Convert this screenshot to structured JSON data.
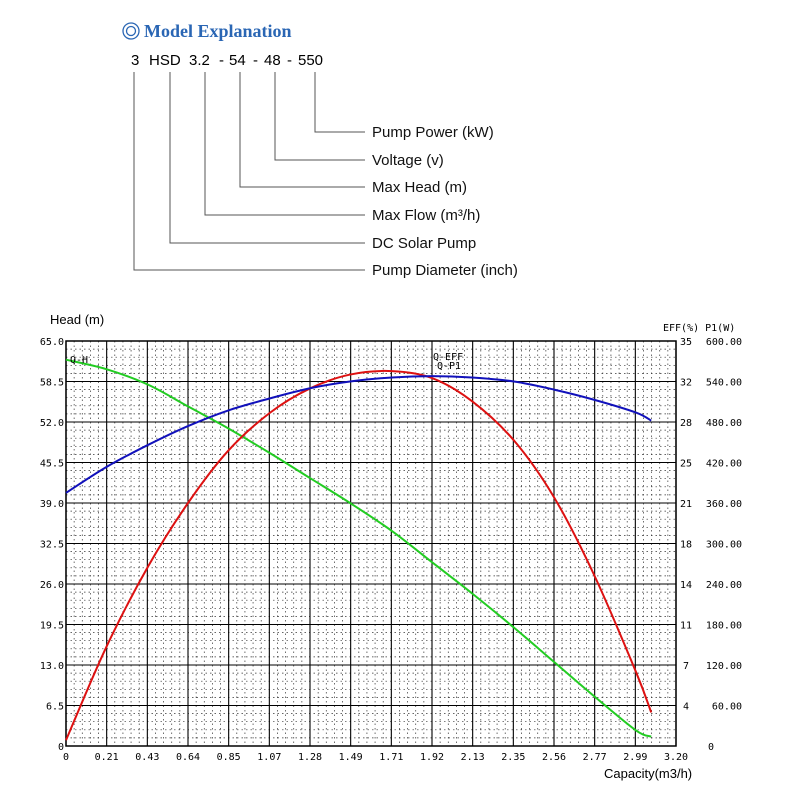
{
  "model": {
    "heading": "Model Explanation",
    "code_parts": [
      "3",
      "HSD",
      "3.2",
      "-",
      "54",
      "-",
      "48",
      "-",
      "550"
    ],
    "labels": [
      "Pump Power (kW)",
      "Voltage (v)",
      "Max Head (m)",
      "Max Flow (m³/h)",
      "DC Solar Pump",
      "Pump Diameter (inch)"
    ]
  },
  "chart_data": {
    "type": "line",
    "ylabel_left": "Head (m)",
    "ylabel_right": "EFF(%) P1(W)",
    "xlabel": "Capacity(m3/h)",
    "x_ticks": [
      "0",
      "0.21",
      "0.43",
      "0.64",
      "0.85",
      "1.07",
      "1.28",
      "1.49",
      "1.71",
      "1.92",
      "2.13",
      "2.35",
      "2.56",
      "2.77",
      "2.99",
      "3.20"
    ],
    "y_left_ticks": [
      "0",
      "6.5",
      "13.0",
      "19.5",
      "26.0",
      "32.5",
      "39.0",
      "45.5",
      "52.0",
      "58.5",
      "65.0"
    ],
    "y_right_eff_ticks": [
      "",
      "4",
      "7",
      "11",
      "14",
      "18",
      "21",
      "25",
      "28",
      "32",
      "35"
    ],
    "y_right_p_ticks": [
      "0",
      "60.00",
      "120.00",
      "180.00",
      "240.00",
      "300.00",
      "360.00",
      "420.00",
      "480.00",
      "540.00",
      "600.00"
    ],
    "xlim": [
      0,
      3.2
    ],
    "ylim_head": [
      0,
      65
    ],
    "ylim_eff": [
      0,
      35
    ],
    "ylim_power": [
      0,
      600
    ],
    "grid": true,
    "series": [
      {
        "name": "Q-H",
        "axis": "head",
        "color": "#22cc22",
        "x": [
          0,
          0.21,
          0.43,
          0.64,
          0.85,
          1.07,
          1.28,
          1.49,
          1.71,
          1.92,
          2.13,
          2.35,
          2.56,
          2.77,
          2.99,
          3.07
        ],
        "y": [
          62.0,
          60.5,
          58.0,
          54.5,
          51.0,
          47.0,
          43.0,
          39.0,
          34.5,
          29.5,
          24.5,
          19.0,
          13.5,
          8.0,
          2.5,
          1.5
        ]
      },
      {
        "name": "Q-EFF",
        "axis": "eff",
        "color": "#dd1111",
        "x": [
          0,
          0.21,
          0.43,
          0.64,
          0.85,
          1.07,
          1.28,
          1.49,
          1.71,
          1.92,
          2.13,
          2.35,
          2.56,
          2.77,
          2.99,
          3.07
        ],
        "y": [
          0.5,
          8.5,
          15.5,
          21.0,
          25.5,
          28.8,
          30.9,
          32.1,
          32.4,
          31.8,
          29.8,
          26.4,
          21.5,
          14.8,
          6.4,
          2.9
        ]
      },
      {
        "name": "Q-P1",
        "axis": "power",
        "color": "#1111bb",
        "x": [
          0,
          0.21,
          0.43,
          0.64,
          0.85,
          1.07,
          1.28,
          1.49,
          1.71,
          1.92,
          2.13,
          2.35,
          2.56,
          2.77,
          2.99,
          3.07
        ],
        "y": [
          375,
          413,
          446,
          474,
          497,
          515,
          530,
          540,
          546,
          548,
          546,
          540,
          528,
          513,
          494,
          482
        ]
      }
    ],
    "annotations": [
      "Q-H",
      "Q-EFF",
      "Q-P1"
    ]
  }
}
